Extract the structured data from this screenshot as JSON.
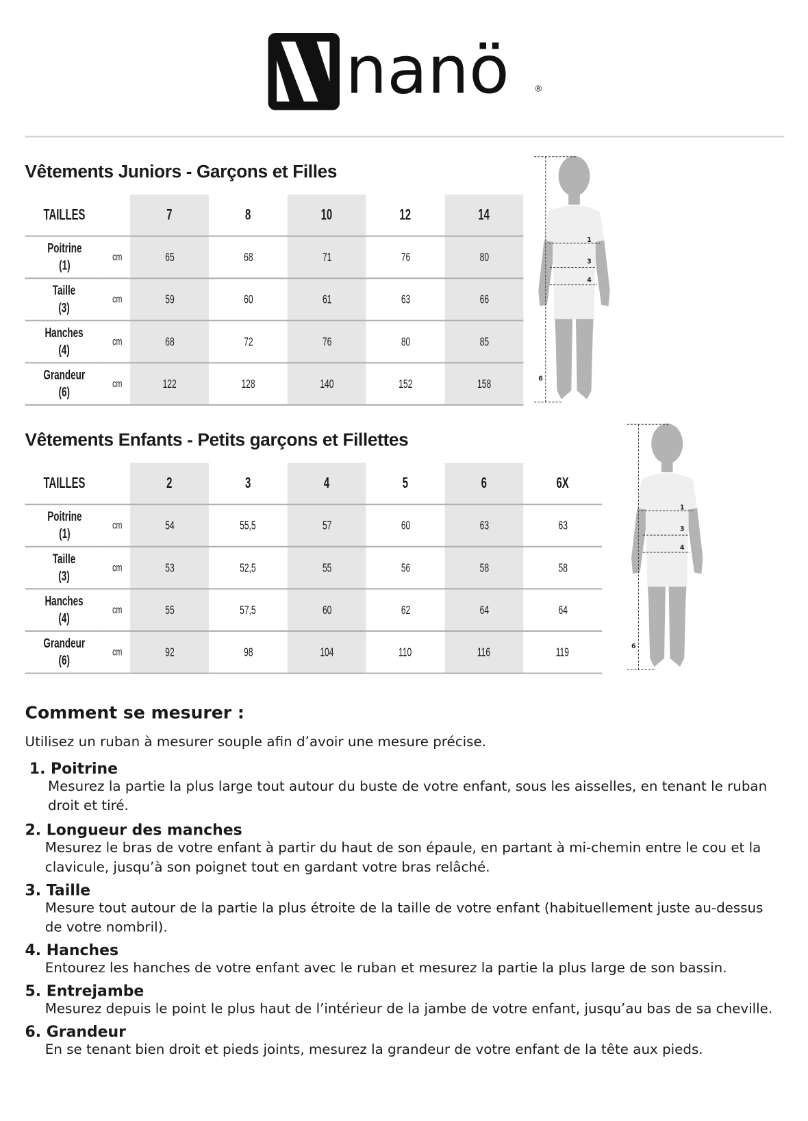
{
  "brand": {
    "name": "nanö",
    "registered": "®"
  },
  "juniors": {
    "title": "Vêtements Juniors - Garçons et Filles",
    "header": "TAILLES",
    "sizes": [
      "7",
      "8",
      "10",
      "12",
      "14"
    ],
    "rows": [
      {
        "label": "Poitrine",
        "num": "(1)",
        "unit": "cm",
        "values": [
          "65",
          "68",
          "71",
          "76",
          "80"
        ]
      },
      {
        "label": "Taille",
        "num": "(3)",
        "unit": "cm",
        "values": [
          "59",
          "60",
          "61",
          "63",
          "66"
        ]
      },
      {
        "label": "Hanches",
        "num": "(4)",
        "unit": "cm",
        "values": [
          "68",
          "72",
          "76",
          "80",
          "85"
        ]
      },
      {
        "label": "Grandeur",
        "num": "(6)",
        "unit": "cm",
        "values": [
          "122",
          "128",
          "140",
          "152",
          "158"
        ]
      }
    ]
  },
  "kids": {
    "title": "Vêtements Enfants - Petits garçons et Fillettes",
    "header": "TAILLES",
    "sizes": [
      "2",
      "3",
      "4",
      "5",
      "6",
      "6X"
    ],
    "rows": [
      {
        "label": "Poitrine",
        "num": "(1)",
        "unit": "cm",
        "values": [
          "54",
          "55,5",
          "57",
          "60",
          "63",
          "63"
        ]
      },
      {
        "label": "Taille",
        "num": "(3)",
        "unit": "cm",
        "values": [
          "53",
          "52,5",
          "55",
          "56",
          "58",
          "58"
        ]
      },
      {
        "label": "Hanches",
        "num": "(4)",
        "unit": "cm",
        "values": [
          "55",
          "57,5",
          "60",
          "62",
          "64",
          "64"
        ]
      },
      {
        "label": "Grandeur",
        "num": "(6)",
        "unit": "cm",
        "values": [
          "92",
          "98",
          "104",
          "110",
          "116",
          "119"
        ]
      }
    ]
  },
  "figure_marks": [
    "1",
    "3",
    "4",
    "6"
  ],
  "howto": {
    "title": "Comment se mesurer :",
    "intro": "Utilisez un ruban à mesurer souple afin d’avoir une mesure précise.",
    "items": [
      {
        "title": "1. Poitrine",
        "text": "Mesurez la partie la plus large tout autour du buste de votre enfant, sous les aisselles, en tenant le ruban droit et tiré."
      },
      {
        "title": "2. Longueur des manches",
        "text": "Mesurez le bras de votre enfant à partir du haut de son épaule, en partant à mi-chemin entre le cou et la clavicule, jusqu’à son poignet tout en gardant votre bras relâché."
      },
      {
        "title": "3. Taille",
        "text": "Mesure tout autour de la partie la plus étroite de la taille de votre enfant (habituellement juste au-dessus de votre nombril)."
      },
      {
        "title": "4. Hanches",
        "text": "Entourez les hanches de votre enfant avec le ruban et mesurez la partie la plus large de son bassin."
      },
      {
        "title": "5. Entrejambe",
        "text": "Mesurez depuis le point le plus haut de l’intérieur de la jambe de votre enfant, jusqu’au bas de sa cheville."
      },
      {
        "title": "6. Grandeur",
        "text": "En se tenant bien droit et pieds joints, mesurez la grandeur de votre enfant de la tête aux pieds."
      }
    ]
  }
}
